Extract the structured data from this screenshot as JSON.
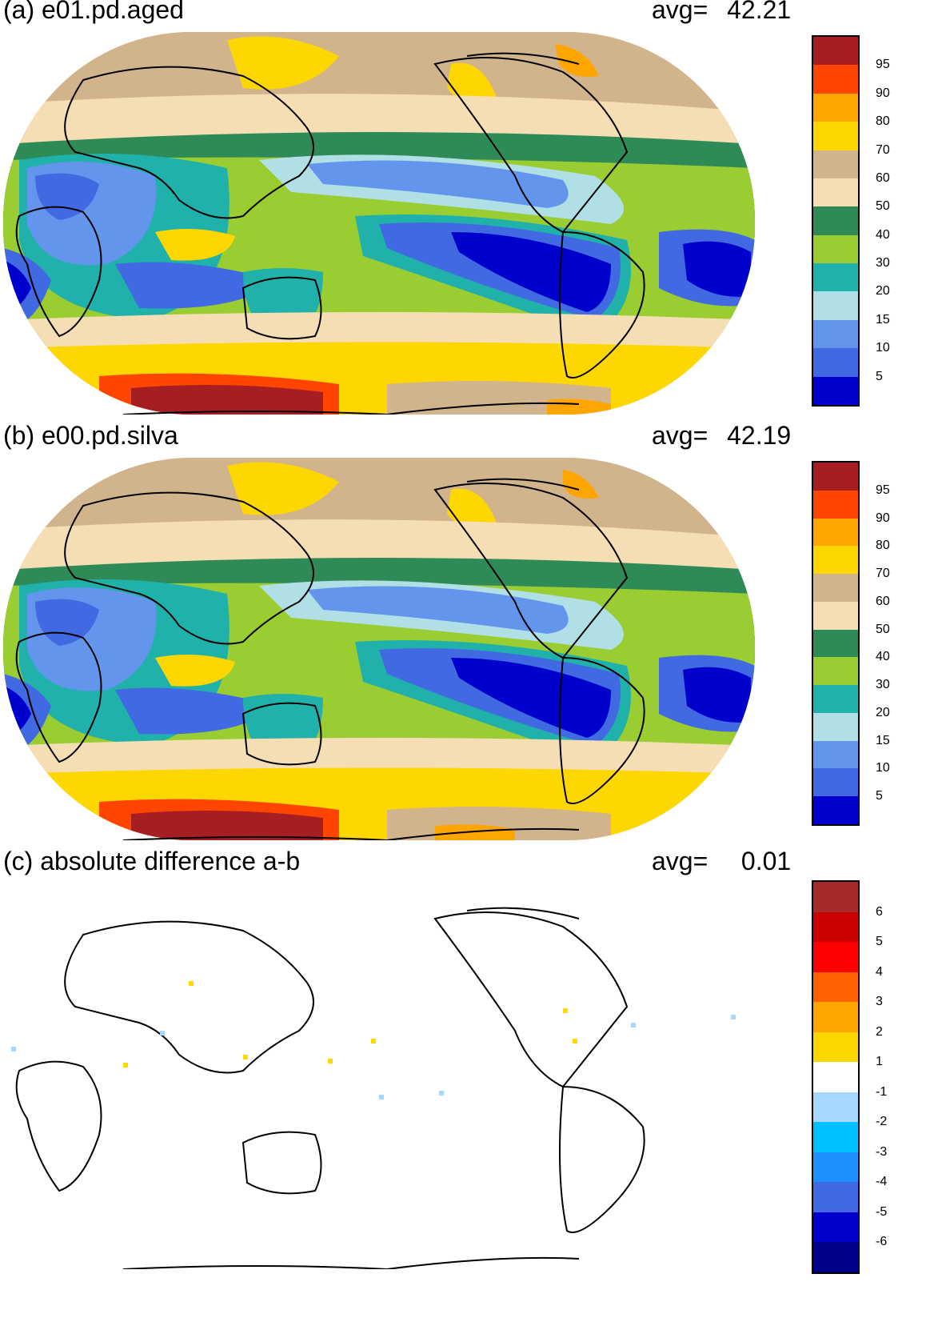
{
  "panels": [
    {
      "title": "(a) e01.pd.aged",
      "avg_label": "avg=",
      "avg_value": "42.21",
      "colorbar": {
        "colors": [
          "#a51e22",
          "#ff4500",
          "#ffa500",
          "#ffd700",
          "#d2b48c",
          "#f5deb3",
          "#2e8b57",
          "#9acd32",
          "#20b2aa",
          "#b0e0e6",
          "#6495ed",
          "#4169e1",
          "#0000cd"
        ],
        "labels": [
          "95",
          "90",
          "80",
          "70",
          "60",
          "50",
          "40",
          "30",
          "20",
          "15",
          "10",
          "5"
        ]
      }
    },
    {
      "title": "(b) e00.pd.silva",
      "avg_label": "avg=",
      "avg_value": "42.19",
      "colorbar": {
        "colors": [
          "#a51e22",
          "#ff4500",
          "#ffa500",
          "#ffd700",
          "#d2b48c",
          "#f5deb3",
          "#2e8b57",
          "#9acd32",
          "#20b2aa",
          "#b0e0e6",
          "#6495ed",
          "#4169e1",
          "#0000cd"
        ],
        "labels": [
          "95",
          "90",
          "80",
          "70",
          "60",
          "50",
          "40",
          "30",
          "20",
          "15",
          "10",
          "5"
        ]
      }
    },
    {
      "title": "(c) absolute difference a-b",
      "avg_label": "avg=",
      "avg_value": "0.01",
      "colorbar": {
        "colors": [
          "#a52a2a",
          "#cd0000",
          "#ff0000",
          "#ff6000",
          "#ffa500",
          "#ffd700",
          "#ffffff",
          "#a6d8ff",
          "#00bfff",
          "#1e90ff",
          "#4169e1",
          "#0000cd",
          "#00008b"
        ],
        "labels": [
          "6",
          "5",
          "4",
          "3",
          "2",
          "1",
          "-1",
          "-2",
          "-3",
          "-4",
          "-5",
          "-6"
        ]
      }
    }
  ]
}
